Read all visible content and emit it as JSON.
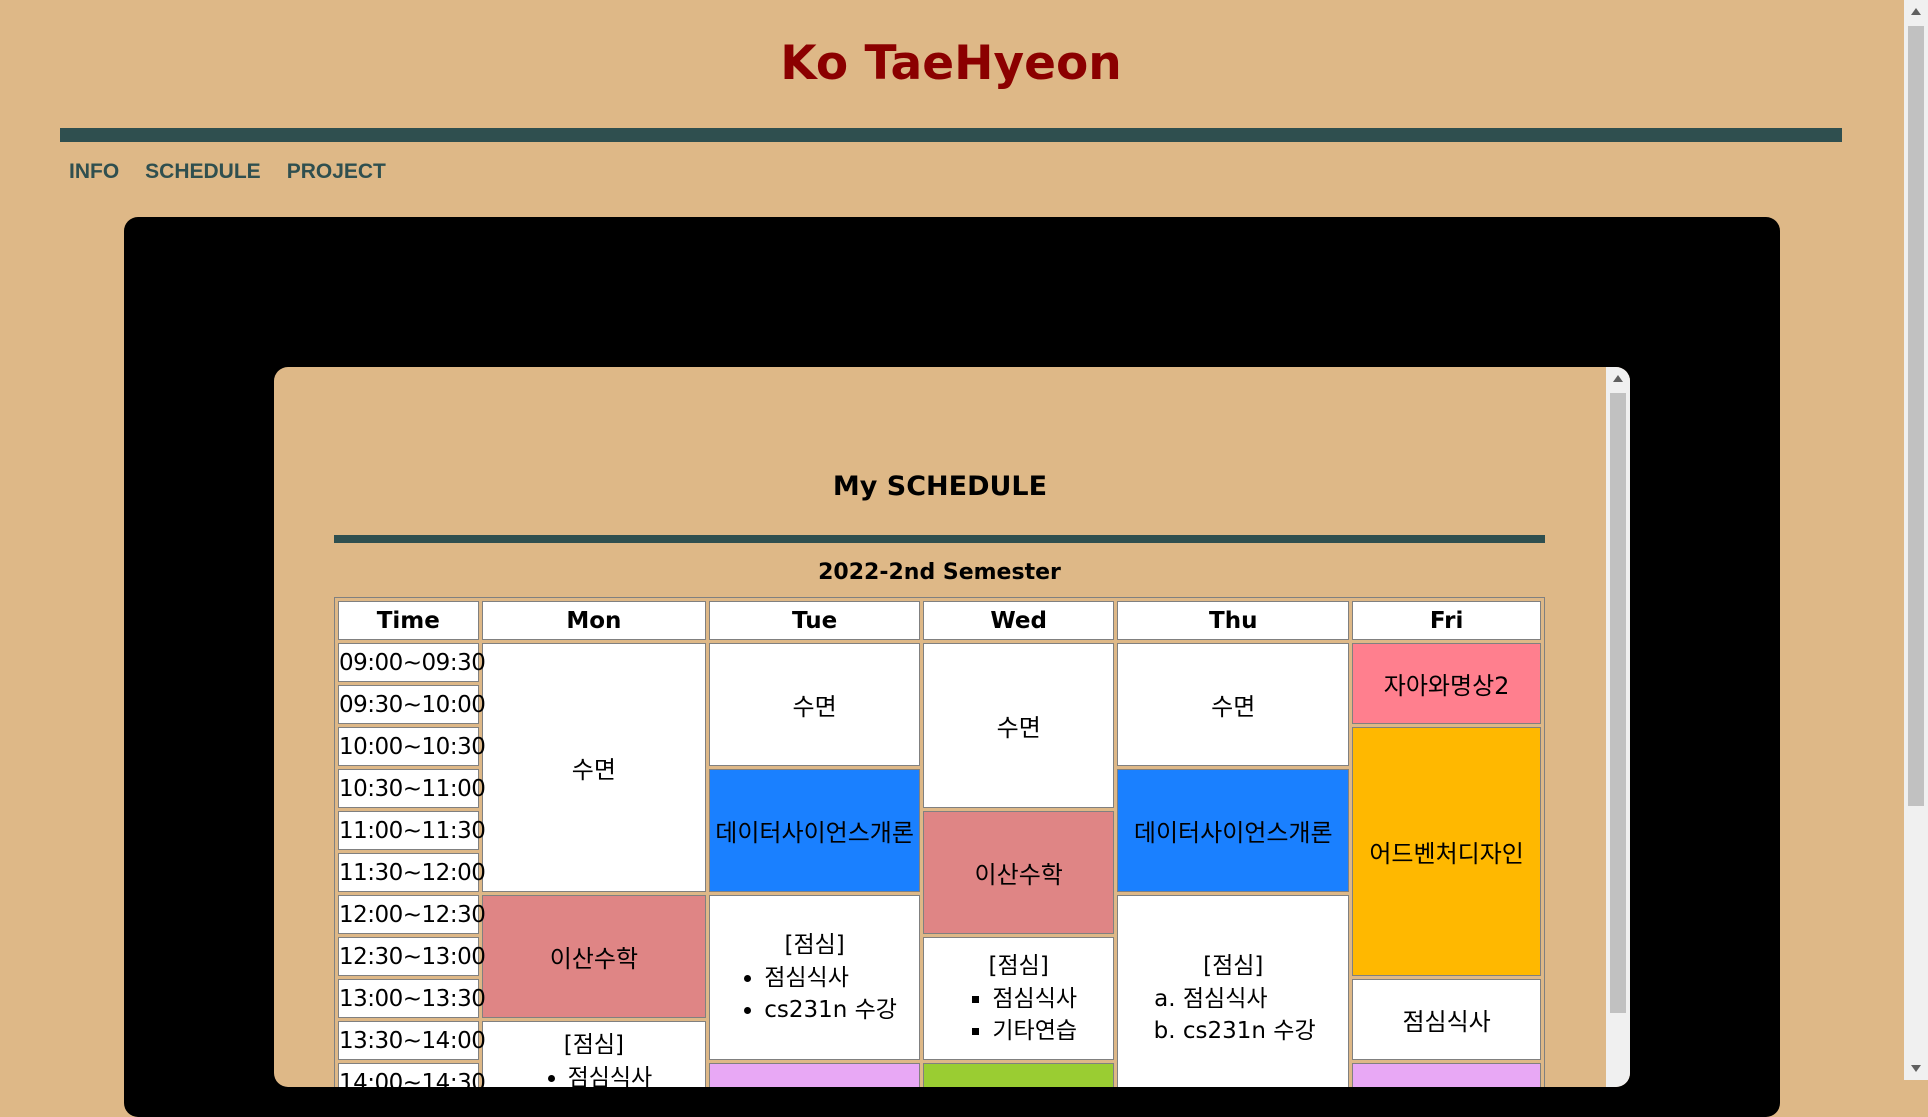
{
  "site": {
    "title": "Ko TaeHyeon"
  },
  "nav": [
    "INFO",
    "SCHEDULE",
    "PROJECT"
  ],
  "schedule": {
    "title": "My SCHEDULE",
    "caption": "2022-2nd Semester",
    "headers": [
      "Time",
      "Mon",
      "Tue",
      "Wed",
      "Thu",
      "Fri"
    ],
    "times": [
      "09:00~09:30",
      "09:30~10:00",
      "10:00~10:30",
      "10:30~11:00",
      "11:00~11:30",
      "11:30~12:00",
      "12:00~12:30",
      "12:30~13:00",
      "13:00~13:30",
      "13:30~14:00",
      "14:00~14:30"
    ],
    "mon": {
      "sleep": "수면",
      "math": "이산수학",
      "lunch_head": "[점심]",
      "lunch_items": [
        "점심식사"
      ]
    },
    "tue": {
      "sleep": "수면",
      "ds": "데이터사이언스개론",
      "lunch_head": "[점심]",
      "lunch_items": [
        "점심식사",
        "cs231n 수강"
      ]
    },
    "wed": {
      "sleep": "수면",
      "math": "이산수학",
      "lunch_head": "[점심]",
      "lunch_items": [
        "점심식사",
        "기타연습"
      ]
    },
    "thu": {
      "sleep": "수면",
      "ds": "데이터사이언스개론",
      "lunch_head": "[점심]",
      "lunch_items": [
        "점심식사",
        "cs231n 수강"
      ]
    },
    "fri": {
      "meditation": "자아와명상2",
      "adventure": "어드벤처디자인",
      "lunch": "점심식사"
    }
  },
  "colors": {
    "background": "#deb887",
    "title": "#8b0000",
    "rule": "#2f4f4f",
    "pink": "#ff7f8e",
    "blue": "#1a80ff",
    "rose": "#df8585",
    "gold": "#ffb800",
    "lavender": "#e8a8f5",
    "green": "#9acd32"
  }
}
